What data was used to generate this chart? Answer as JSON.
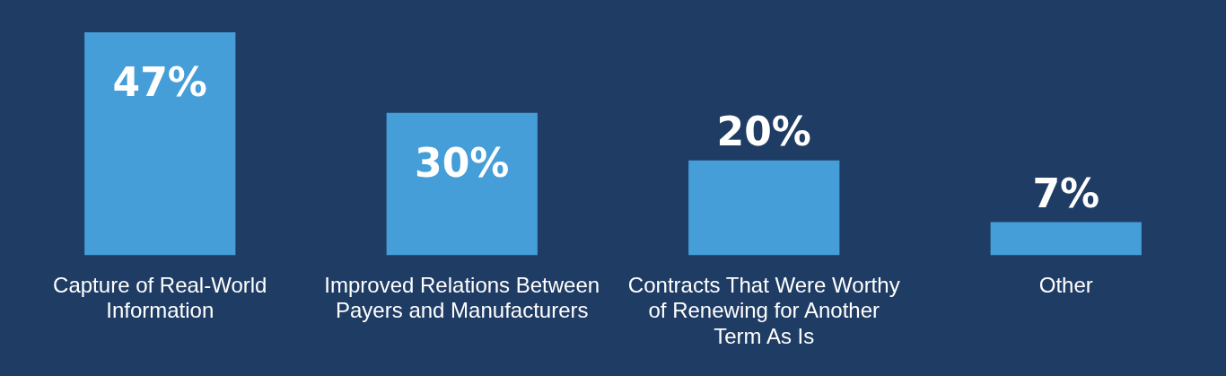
{
  "chart_data": {
    "type": "bar",
    "categories": [
      "Capture of Real-World Information",
      "Improved Relations Between Payers and Manufacturers",
      "Contracts That Were Worthy of Renewing for Another Term As Is",
      "Other"
    ],
    "values": [
      47,
      30,
      20,
      7
    ],
    "value_labels": [
      "47%",
      "30%",
      "20%",
      "7%"
    ],
    "color": "#459ed8",
    "grid": false,
    "legend": false
  }
}
